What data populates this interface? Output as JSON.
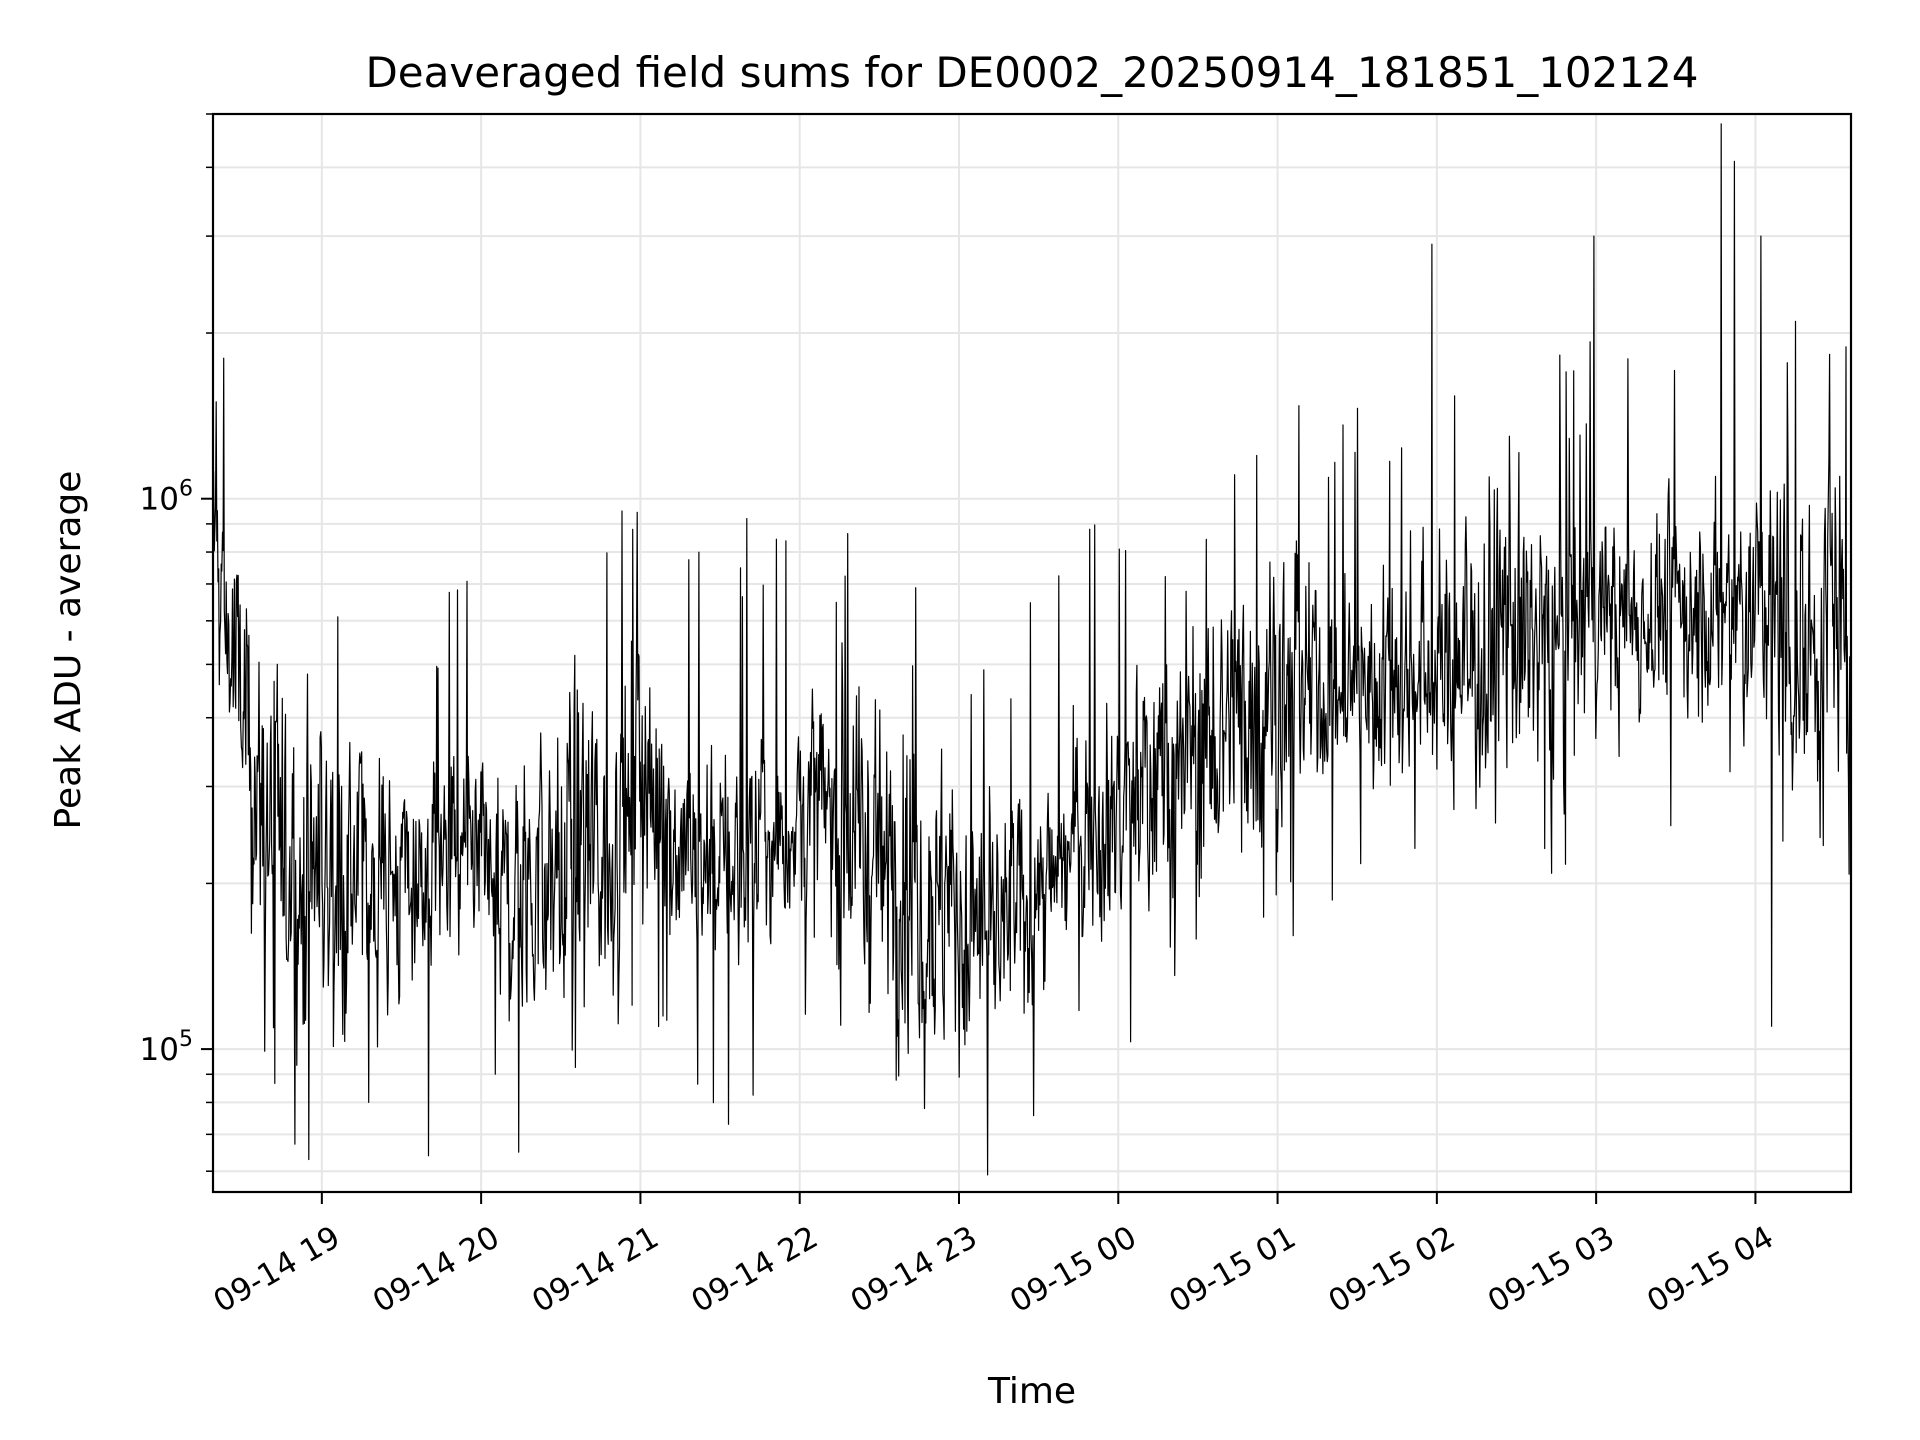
{
  "chart_data": {
    "type": "line",
    "title": "Deaveraged field sums for DE0002_20250914_181851_102124",
    "xlabel": "Time",
    "ylabel": "Peak ADU - average",
    "yscale": "log",
    "ylim": [
      55000,
      5000000
    ],
    "xlim": [
      "2025-09-14T18:19",
      "2025-09-15T04:36"
    ],
    "grid": true,
    "x_tick_labels": [
      "09-14 19",
      "09-14 20",
      "09-14 21",
      "09-14 22",
      "09-14 23",
      "09-15 00",
      "09-15 01",
      "09-15 02",
      "09-15 03",
      "09-15 04"
    ],
    "y_tick_labels": [
      {
        "base": "10",
        "exp": "5"
      },
      {
        "base": "10",
        "exp": "6"
      }
    ],
    "line_color": "#000000",
    "series": [
      {
        "x": [
          "2025-09-14T18:19",
          "2025-09-14T18:25",
          "2025-09-14T18:30",
          "2025-09-14T18:35",
          "2025-09-14T18:40",
          "2025-09-14T18:45",
          "2025-09-14T18:50",
          "2025-09-14T19:00",
          "2025-09-14T19:10",
          "2025-09-14T19:20",
          "2025-09-14T19:30",
          "2025-09-14T19:40",
          "2025-09-14T19:50",
          "2025-09-14T20:00",
          "2025-09-14T20:10",
          "2025-09-14T20:20",
          "2025-09-14T20:30",
          "2025-09-14T20:40",
          "2025-09-14T20:50",
          "2025-09-14T21:00",
          "2025-09-14T21:15",
          "2025-09-14T21:30",
          "2025-09-14T21:45",
          "2025-09-14T22:00",
          "2025-09-14T22:15",
          "2025-09-14T22:30",
          "2025-09-14T22:45",
          "2025-09-14T23:00",
          "2025-09-14T23:15",
          "2025-09-14T23:30",
          "2025-09-14T23:45",
          "2025-09-15T00:00",
          "2025-09-15T00:15",
          "2025-09-15T00:30",
          "2025-09-15T00:45",
          "2025-09-15T01:00",
          "2025-09-15T01:15",
          "2025-09-15T01:30",
          "2025-09-15T01:45",
          "2025-09-15T02:00",
          "2025-09-15T02:15",
          "2025-09-15T02:30",
          "2025-09-15T02:45",
          "2025-09-15T03:00",
          "2025-09-15T03:15",
          "2025-09-15T03:30",
          "2025-09-15T03:45",
          "2025-09-15T04:00",
          "2025-09-15T04:15",
          "2025-09-15T04:30",
          "2025-09-15T04:36"
        ],
        "values": [
          800000,
          550000,
          400000,
          300000,
          250000,
          230000,
          220000,
          210000,
          200000,
          210000,
          200000,
          210000,
          220000,
          200000,
          190000,
          200000,
          210000,
          230000,
          230000,
          320000,
          240000,
          220000,
          230000,
          270000,
          260000,
          220000,
          210000,
          170000,
          160000,
          190000,
          240000,
          280000,
          310000,
          360000,
          400000,
          460000,
          440000,
          450000,
          480000,
          500000,
          520000,
          560000,
          560000,
          620000,
          600000,
          650000,
          600000,
          640000,
          560000,
          600000,
          550000
        ]
      }
    ],
    "spikes": [
      {
        "x": "2025-09-14T18:23",
        "value": 1800000
      },
      {
        "x": "2025-09-14T18:20",
        "value": 1500000
      },
      {
        "x": "2025-09-14T18:55",
        "value": 63000
      },
      {
        "x": "2025-09-14T19:40",
        "value": 64000
      },
      {
        "x": "2025-09-14T20:14",
        "value": 65000
      },
      {
        "x": "2025-09-14T20:53",
        "value": 950000
      },
      {
        "x": "2025-09-14T21:33",
        "value": 73000
      },
      {
        "x": "2025-09-14T21:40",
        "value": 920000
      },
      {
        "x": "2025-09-14T22:47",
        "value": 78000
      },
      {
        "x": "2025-09-15T01:58",
        "value": 2900000
      },
      {
        "x": "2025-09-15T02:59",
        "value": 3000000
      },
      {
        "x": "2025-09-15T03:47",
        "value": 4800000
      },
      {
        "x": "2025-09-15T03:52",
        "value": 4100000
      },
      {
        "x": "2025-09-15T04:02",
        "value": 3000000
      },
      {
        "x": "2025-09-15T04:15",
        "value": 2100000
      },
      {
        "x": "2025-09-15T04:06",
        "value": 110000
      }
    ]
  }
}
